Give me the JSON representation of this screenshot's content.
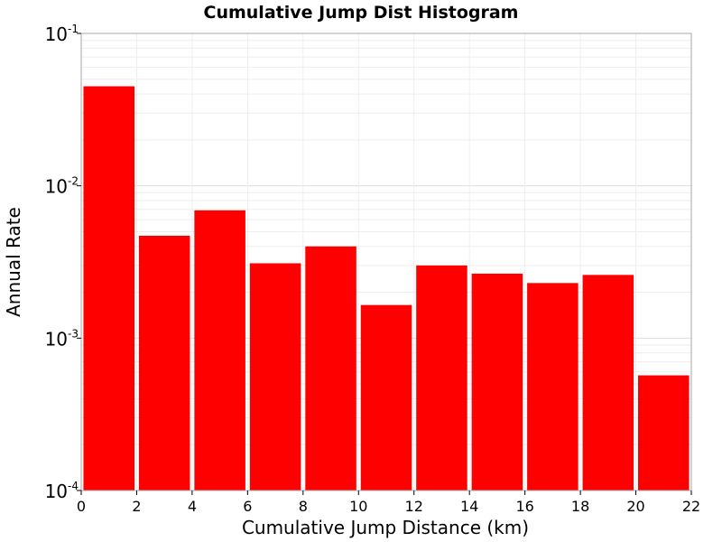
{
  "chart_data": {
    "type": "bar",
    "title": "Cumulative Jump Dist Histogram",
    "xlabel": "Cumulative Jump Distance (km)",
    "ylabel": "Annual Rate",
    "xlim": [
      0,
      22
    ],
    "ylim": [
      0.0001,
      0.1
    ],
    "yscale": "log",
    "grid": true,
    "bar_color": "#ff0000",
    "x_ticks": [
      "0",
      "2",
      "4",
      "6",
      "8",
      "10",
      "12",
      "14",
      "16",
      "18",
      "20",
      "22"
    ],
    "y_ticks": [
      {
        "base": "10",
        "exp": "-4"
      },
      {
        "base": "10",
        "exp": "-3"
      },
      {
        "base": "10",
        "exp": "-2"
      },
      {
        "base": "10",
        "exp": "-1"
      }
    ],
    "bins": [
      {
        "x": 1,
        "value": 0.045
      },
      {
        "x": 3,
        "value": 0.0047
      },
      {
        "x": 5,
        "value": 0.0069
      },
      {
        "x": 7,
        "value": 0.0031
      },
      {
        "x": 9,
        "value": 0.004
      },
      {
        "x": 11,
        "value": 0.00165
      },
      {
        "x": 13,
        "value": 0.003
      },
      {
        "x": 15,
        "value": 0.00265
      },
      {
        "x": 17,
        "value": 0.0023
      },
      {
        "x": 19,
        "value": 0.0026
      },
      {
        "x": 21,
        "value": 0.00057
      }
    ]
  }
}
